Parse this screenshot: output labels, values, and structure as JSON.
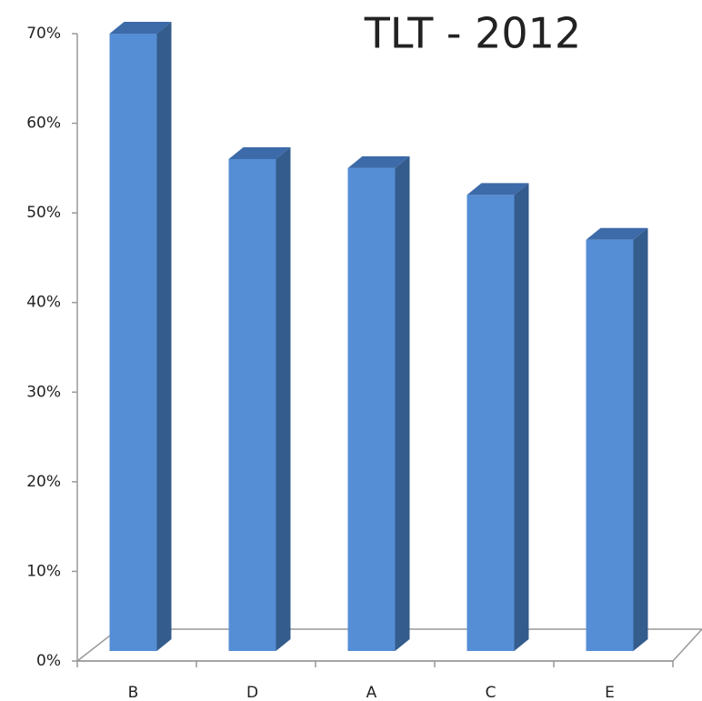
{
  "chart_data": {
    "type": "bar",
    "title": "TLT - 2012",
    "categories": [
      "B",
      "D",
      "A",
      "C",
      "E"
    ],
    "values": [
      70,
      56,
      55,
      52,
      47
    ],
    "color": "#558ed5",
    "ylim": [
      0,
      70
    ],
    "yticks": [
      {
        "value": 0,
        "label": "0%"
      },
      {
        "value": 10,
        "label": "10%"
      },
      {
        "value": 20,
        "label": "20%"
      },
      {
        "value": 30,
        "label": "30%"
      },
      {
        "value": 40,
        "label": "40%"
      },
      {
        "value": 50,
        "label": "50%"
      },
      {
        "value": 60,
        "label": "60%"
      },
      {
        "value": 70,
        "label": "70%"
      }
    ]
  }
}
